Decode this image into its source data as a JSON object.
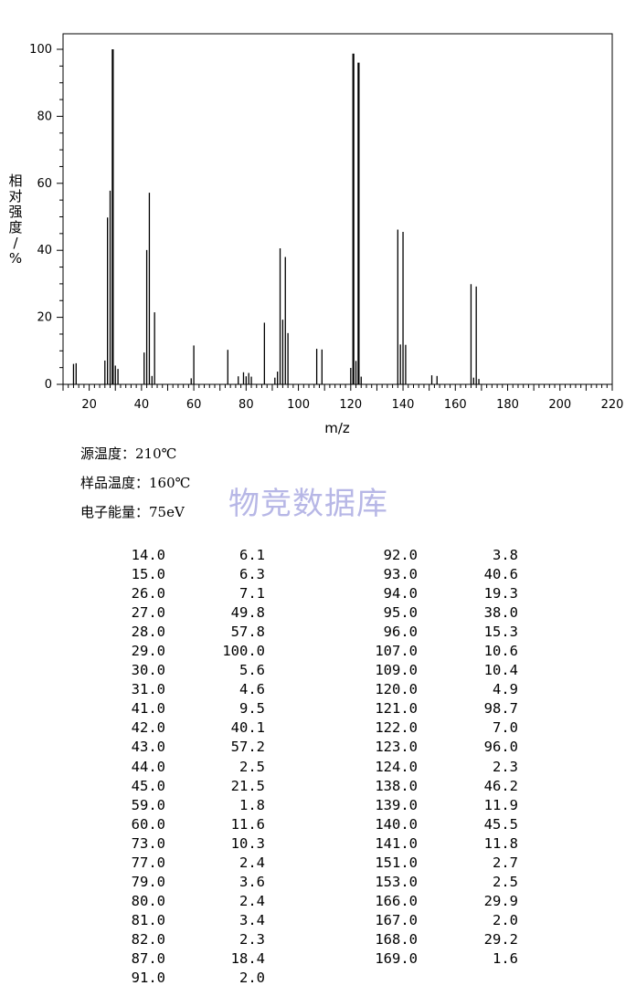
{
  "chart_data": {
    "type": "bar",
    "xlabel": "m/z",
    "ylabel": "相对强度/%",
    "xlim": [
      10,
      220
    ],
    "ylim": [
      0,
      105
    ],
    "xticks": [
      20,
      40,
      60,
      80,
      100,
      120,
      140,
      160,
      180,
      200,
      220
    ],
    "yticks": [
      0,
      20,
      40,
      60,
      80,
      100
    ],
    "grid": false,
    "x": [
      14,
      15,
      26,
      27,
      28,
      29,
      30,
      31,
      41,
      42,
      43,
      44,
      45,
      59,
      60,
      73,
      77,
      79,
      80,
      81,
      82,
      87,
      91,
      92,
      93,
      94,
      95,
      96,
      107,
      109,
      120,
      121,
      122,
      123,
      124,
      138,
      139,
      140,
      141,
      151,
      153,
      166,
      167,
      168,
      169
    ],
    "values": [
      6.1,
      6.3,
      7.1,
      49.8,
      57.8,
      100.0,
      5.6,
      4.6,
      9.5,
      40.1,
      57.2,
      2.5,
      21.5,
      1.8,
      11.6,
      10.3,
      2.4,
      3.6,
      2.4,
      3.4,
      2.3,
      18.4,
      2.0,
      3.8,
      40.6,
      19.3,
      38.0,
      15.3,
      10.6,
      10.4,
      4.9,
      98.7,
      7.0,
      96.0,
      2.3,
      46.2,
      11.9,
      45.5,
      11.8,
      2.7,
      2.5,
      29.9,
      2.0,
      29.2,
      1.6
    ]
  },
  "conditions": {
    "source_temp": "源温度：210℃",
    "sample_temp": "样品温度：160℃",
    "electron_energy": "电子能量：75eV"
  },
  "watermark": "物竞数据库",
  "peak_table": {
    "left": [
      [
        "14.0",
        "6.1"
      ],
      [
        "15.0",
        "6.3"
      ],
      [
        "26.0",
        "7.1"
      ],
      [
        "27.0",
        "49.8"
      ],
      [
        "28.0",
        "57.8"
      ],
      [
        "29.0",
        "100.0"
      ],
      [
        "30.0",
        "5.6"
      ],
      [
        "31.0",
        "4.6"
      ],
      [
        "41.0",
        "9.5"
      ],
      [
        "42.0",
        "40.1"
      ],
      [
        "43.0",
        "57.2"
      ],
      [
        "44.0",
        "2.5"
      ],
      [
        "45.0",
        "21.5"
      ],
      [
        "59.0",
        "1.8"
      ],
      [
        "60.0",
        "11.6"
      ],
      [
        "73.0",
        "10.3"
      ],
      [
        "77.0",
        "2.4"
      ],
      [
        "79.0",
        "3.6"
      ],
      [
        "80.0",
        "2.4"
      ],
      [
        "81.0",
        "3.4"
      ],
      [
        "82.0",
        "2.3"
      ],
      [
        "87.0",
        "18.4"
      ],
      [
        "91.0",
        "2.0"
      ]
    ],
    "right": [
      [
        "92.0",
        "3.8"
      ],
      [
        "93.0",
        "40.6"
      ],
      [
        "94.0",
        "19.3"
      ],
      [
        "95.0",
        "38.0"
      ],
      [
        "96.0",
        "15.3"
      ],
      [
        "107.0",
        "10.6"
      ],
      [
        "109.0",
        "10.4"
      ],
      [
        "120.0",
        "4.9"
      ],
      [
        "121.0",
        "98.7"
      ],
      [
        "122.0",
        "7.0"
      ],
      [
        "123.0",
        "96.0"
      ],
      [
        "124.0",
        "2.3"
      ],
      [
        "138.0",
        "46.2"
      ],
      [
        "139.0",
        "11.9"
      ],
      [
        "140.0",
        "45.5"
      ],
      [
        "141.0",
        "11.8"
      ],
      [
        "151.0",
        "2.7"
      ],
      [
        "153.0",
        "2.5"
      ],
      [
        "166.0",
        "29.9"
      ],
      [
        "167.0",
        "2.0"
      ],
      [
        "168.0",
        "29.2"
      ],
      [
        "169.0",
        "1.6"
      ]
    ]
  }
}
